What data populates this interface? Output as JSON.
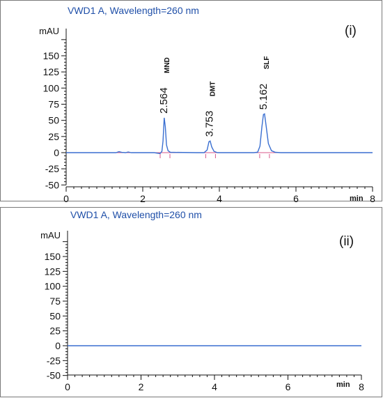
{
  "chart_data": [
    {
      "type": "line",
      "title": "VWD1 A, Wavelength=260 nm",
      "panel_label": "(i)",
      "ylabel": "mAU",
      "xlabel": "min",
      "xlim": [
        0,
        8
      ],
      "ylim": [
        -50,
        175
      ],
      "x_ticks": [
        0,
        2,
        4,
        6,
        8
      ],
      "y_ticks": [
        -50,
        -25,
        0,
        25,
        50,
        75,
        100,
        125,
        150
      ],
      "grid": false,
      "colors": {
        "signal": "#3a6fd1",
        "baseline": "#d9578a"
      },
      "series": [
        {
          "points": [
            [
              0,
              0
            ],
            [
              1.3,
              0
            ],
            [
              1.38,
              1.5
            ],
            [
              1.45,
              0.4
            ],
            [
              1.55,
              0
            ],
            [
              1.62,
              1
            ],
            [
              1.7,
              0
            ],
            [
              2.3,
              0
            ],
            [
              2.45,
              -1.5
            ],
            [
              2.5,
              2
            ],
            [
              2.53,
              18
            ],
            [
              2.56,
              54
            ],
            [
              2.59,
              40
            ],
            [
              2.62,
              12
            ],
            [
              2.66,
              3
            ],
            [
              2.72,
              0.5
            ],
            [
              3.4,
              0
            ],
            [
              3.6,
              0
            ],
            [
              3.68,
              4
            ],
            [
              3.73,
              17
            ],
            [
              3.76,
              18
            ],
            [
              3.8,
              9
            ],
            [
              3.86,
              2
            ],
            [
              3.95,
              0
            ],
            [
              4.9,
              0
            ],
            [
              5.0,
              0.8
            ],
            [
              5.06,
              10
            ],
            [
              5.11,
              40
            ],
            [
              5.15,
              59
            ],
            [
              5.18,
              60
            ],
            [
              5.22,
              42
            ],
            [
              5.28,
              14
            ],
            [
              5.36,
              3
            ],
            [
              5.46,
              0.5
            ],
            [
              5.6,
              0
            ],
            [
              8,
              0
            ]
          ]
        }
      ],
      "peaks": [
        {
          "rt": "2.564",
          "x": 2.564,
          "y": 54,
          "name": "MND"
        },
        {
          "rt": "3.753",
          "x": 3.753,
          "y": 18,
          "name": "DMT"
        },
        {
          "rt": "5.162",
          "x": 5.162,
          "y": 60,
          "name": "SLF"
        }
      ]
    },
    {
      "type": "line",
      "title": "VWD1 A, Wavelength=260 nm",
      "panel_label": "(ii)",
      "ylabel": "mAU",
      "xlabel": "min",
      "xlim": [
        0,
        8
      ],
      "ylim": [
        -50,
        175
      ],
      "x_ticks": [
        0,
        2,
        4,
        6,
        8
      ],
      "y_ticks": [
        -50,
        -25,
        0,
        25,
        50,
        75,
        100,
        125,
        150
      ],
      "grid": false,
      "colors": {
        "signal": "#3a6fd1"
      },
      "series": [
        {
          "points": [
            [
              0,
              0
            ],
            [
              8,
              0
            ]
          ]
        }
      ],
      "peaks": []
    }
  ]
}
